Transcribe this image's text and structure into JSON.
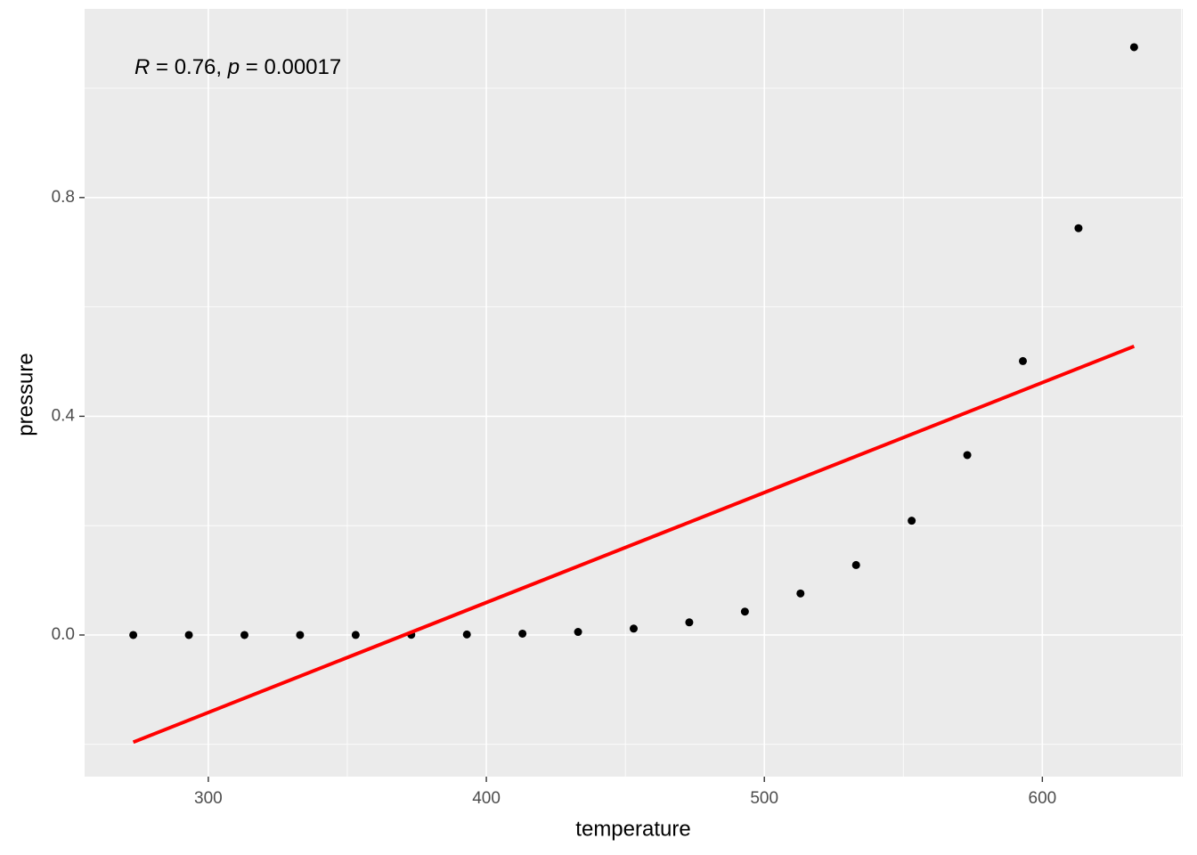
{
  "chart_data": {
    "type": "scatter",
    "x_label": "temperature",
    "y_label": "pressure",
    "annotation": [
      "R",
      " = 0.76, ",
      "p",
      " = 0.00017"
    ],
    "x": [
      273,
      293,
      313,
      333,
      353,
      373,
      393,
      413,
      433,
      453,
      473,
      493,
      513,
      533,
      553,
      573,
      593,
      613,
      633
    ],
    "series": [
      {
        "color": "#000000",
        "values": [
          0,
          0,
          0,
          0,
          0.0001,
          0.0004,
          0.001,
          0.0025,
          0.0056,
          0.0117,
          0.0231,
          0.0428,
          0.076,
          0.128,
          0.209,
          0.329,
          0.501,
          0.744,
          1.075
        ]
      }
    ],
    "fit_line": {
      "color": "#ff0000",
      "x": [
        273,
        633
      ],
      "values": [
        -0.196,
        0.528
      ]
    },
    "xlim": [
      255.5,
      650.5
    ],
    "ylim": [
      -0.259,
      1.145
    ],
    "xticks": [
      300,
      400,
      500,
      600
    ],
    "yticks": [
      {
        "value": 0,
        "label": "0.0"
      },
      0.4,
      0.8
    ],
    "minor_grid_x": [
      350,
      450,
      550,
      650
    ],
    "minor_grid_y": [
      -0.2,
      0.2,
      0.6,
      1.0
    ],
    "grid": true,
    "panel_color": "#ebebeb"
  }
}
